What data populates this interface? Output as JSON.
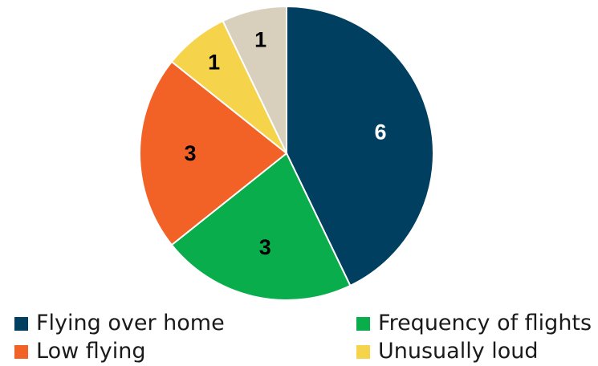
{
  "chart_data": {
    "type": "pie",
    "categories": [
      "Flying over home",
      "Frequency of flights",
      "Low flying",
      "Unusually loud",
      ""
    ],
    "values": [
      6,
      3,
      3,
      1,
      1
    ],
    "labels": [
      "6",
      "3",
      "3",
      "1",
      "1"
    ],
    "colors": [
      "#003f5f",
      "#0aad4c",
      "#f26125",
      "#f5d44c",
      "#d8cfbd"
    ],
    "label_colors": [
      "#ffffff",
      "#000000",
      "#000000",
      "#000000",
      "#000000"
    ],
    "legend_position": "bottom",
    "start_angle_deg": 0,
    "direction": "clockwise"
  },
  "legend": [
    {
      "label": "Flying over home",
      "color": "#003f5f"
    },
    {
      "label": "Frequency of flights",
      "color": "#0aad4c"
    },
    {
      "label": "Low flying",
      "color": "#f26125"
    },
    {
      "label": "Unusually loud",
      "color": "#f5d44c"
    }
  ]
}
